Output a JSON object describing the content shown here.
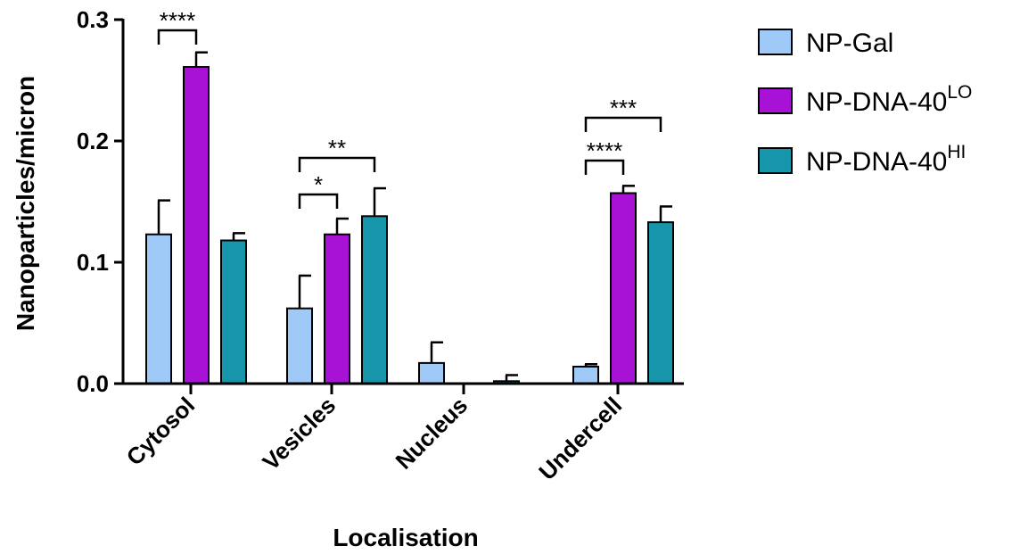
{
  "chart_data": {
    "type": "bar",
    "xlabel": "Localisation",
    "ylabel": "Nanoparticles/micron",
    "ylim": [
      0,
      0.3
    ],
    "yticks": [
      "0.0",
      "0.1",
      "0.2",
      "0.3"
    ],
    "categories": [
      "Cytosol",
      "Vesicles",
      "Nucleus",
      "Undercell"
    ],
    "series": [
      {
        "name": "NP-Gal",
        "base": "NP-Gal",
        "sup": "",
        "color": "#9fcaf7",
        "values": [
          0.123,
          0.062,
          0.017,
          0.014
        ],
        "errors": [
          0.028,
          0.027,
          0.017,
          0.002
        ]
      },
      {
        "name": "NP-DNA-40LO",
        "base": "NP-DNA-40",
        "sup": "LO",
        "color": "#a812d6",
        "values": [
          0.261,
          0.123,
          0.0,
          0.157
        ],
        "errors": [
          0.012,
          0.013,
          0.0,
          0.006
        ]
      },
      {
        "name": "NP-DNA-40HI",
        "base": "NP-DNA-40",
        "sup": "HI",
        "color": "#1796ab",
        "values": [
          0.118,
          0.138,
          0.002,
          0.133
        ],
        "errors": [
          0.006,
          0.023,
          0.005,
          0.013
        ]
      }
    ],
    "significance": [
      {
        "category": 0,
        "from": 0,
        "to": 1,
        "label": "****"
      },
      {
        "category": 1,
        "from": 0,
        "to": 1,
        "label": "*"
      },
      {
        "category": 1,
        "from": 0,
        "to": 2,
        "label": "**"
      },
      {
        "category": 3,
        "from": 0,
        "to": 1,
        "label": "****"
      },
      {
        "category": 3,
        "from": 0,
        "to": 2,
        "label": "***"
      }
    ],
    "legend_position": "top-right",
    "grid": false
  }
}
